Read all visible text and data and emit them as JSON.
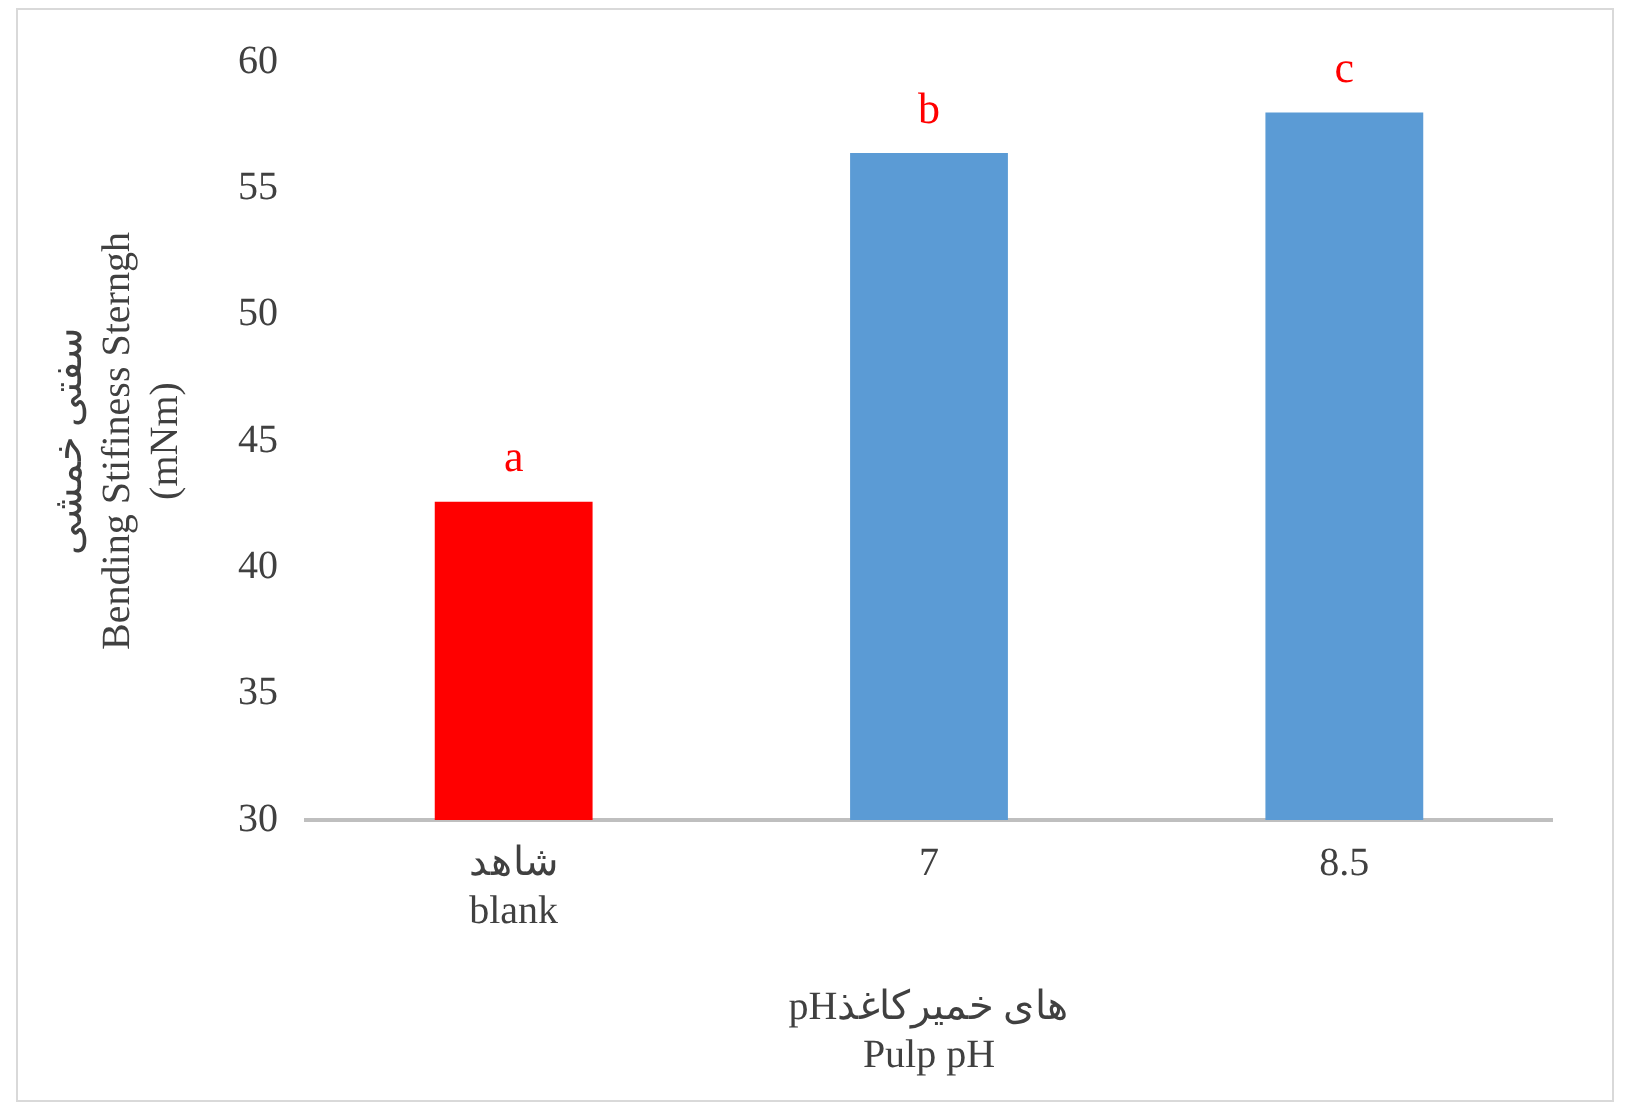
{
  "chart_data": {
    "type": "bar",
    "xlabel": "pHهای خمیرکاغذ\nPulp pH",
    "ylabel": "سفتی خمشی\nBending Stifiness Sterngh\n(mNm)",
    "categories": [
      "شاهد\nblank",
      "7",
      "8.5"
    ],
    "values": [
      42.6,
      56.4,
      58.0
    ],
    "colors": [
      "#ff0000",
      "#5b9bd5",
      "#5b9bd5"
    ],
    "ylim": [
      30,
      60
    ],
    "yticks": [
      30,
      35,
      40,
      45,
      50,
      55,
      60
    ],
    "grid": false,
    "legend": false,
    "annotations": [
      {
        "text": "a",
        "x": "شاهد\nblank",
        "y": 42.6
      },
      {
        "text": "b",
        "x": "7",
        "y": 56.4
      },
      {
        "text": "c",
        "x": "8.5",
        "y": 58.0
      }
    ]
  }
}
